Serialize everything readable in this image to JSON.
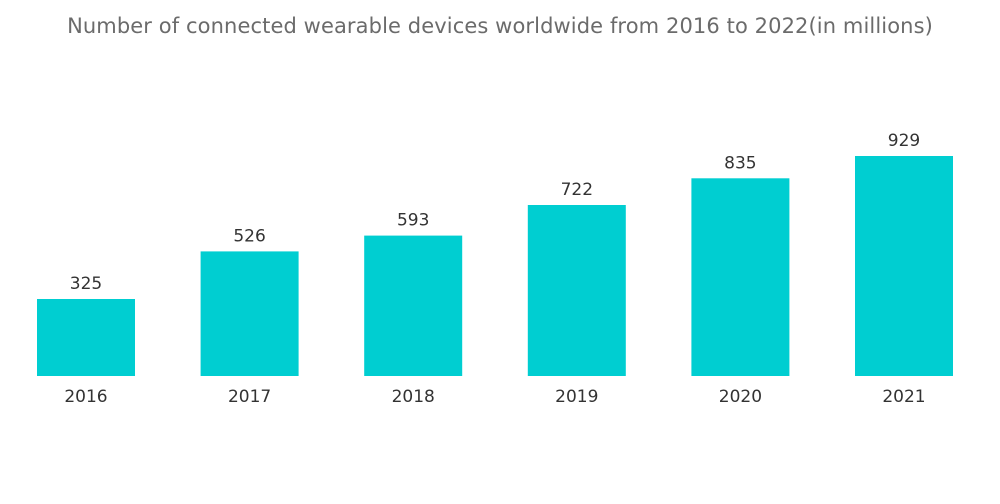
{
  "title": "Number of connected wearable devices worldwide from 2016 to 2022(in millions)",
  "colors": {
    "bar": "#00ced1",
    "text": "#333333",
    "title": "#6b6b6b"
  },
  "chart_data": {
    "type": "bar",
    "title": "Number of connected wearable devices worldwide from 2016 to 2022(in millions)",
    "categories": [
      "2016",
      "2017",
      "2018",
      "2019",
      "2020",
      "2021"
    ],
    "values": [
      325,
      526,
      593,
      722,
      835,
      929
    ],
    "xlabel": "",
    "ylabel": "",
    "ylim": [
      0,
      929
    ],
    "grid": false,
    "legend": "none",
    "data_labels": true
  }
}
